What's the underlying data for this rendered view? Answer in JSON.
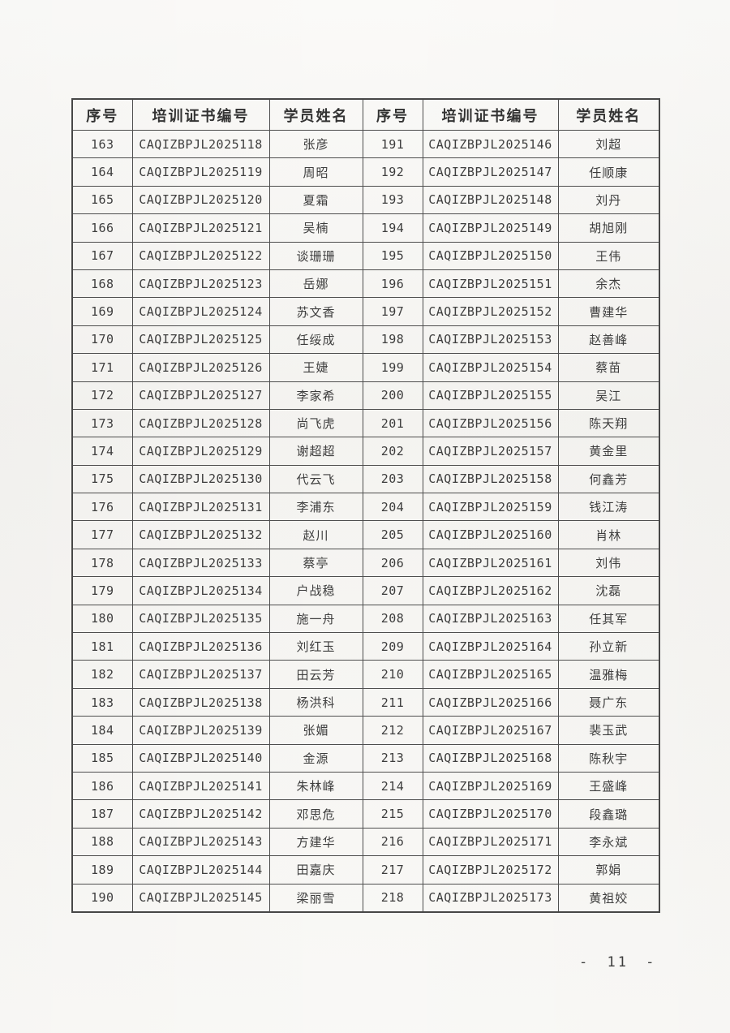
{
  "page": {
    "number_label": "- 11 -"
  },
  "table": {
    "headers": [
      "序号",
      "培训证书编号",
      "学员姓名",
      "序号",
      "培训证书编号",
      "学员姓名"
    ],
    "rows": [
      [
        "163",
        "CAQIZBPJL2025118",
        "张彦",
        "191",
        "CAQIZBPJL2025146",
        "刘超"
      ],
      [
        "164",
        "CAQIZBPJL2025119",
        "周昭",
        "192",
        "CAQIZBPJL2025147",
        "任顺康"
      ],
      [
        "165",
        "CAQIZBPJL2025120",
        "夏霜",
        "193",
        "CAQIZBPJL2025148",
        "刘丹"
      ],
      [
        "166",
        "CAQIZBPJL2025121",
        "吴楠",
        "194",
        "CAQIZBPJL2025149",
        "胡旭刚"
      ],
      [
        "167",
        "CAQIZBPJL2025122",
        "谈珊珊",
        "195",
        "CAQIZBPJL2025150",
        "王伟"
      ],
      [
        "168",
        "CAQIZBPJL2025123",
        "岳娜",
        "196",
        "CAQIZBPJL2025151",
        "余杰"
      ],
      [
        "169",
        "CAQIZBPJL2025124",
        "苏文香",
        "197",
        "CAQIZBPJL2025152",
        "曹建华"
      ],
      [
        "170",
        "CAQIZBPJL2025125",
        "任绥成",
        "198",
        "CAQIZBPJL2025153",
        "赵善峰"
      ],
      [
        "171",
        "CAQIZBPJL2025126",
        "王婕",
        "199",
        "CAQIZBPJL2025154",
        "蔡苗"
      ],
      [
        "172",
        "CAQIZBPJL2025127",
        "李家希",
        "200",
        "CAQIZBPJL2025155",
        "吴江"
      ],
      [
        "173",
        "CAQIZBPJL2025128",
        "尚飞虎",
        "201",
        "CAQIZBPJL2025156",
        "陈天翔"
      ],
      [
        "174",
        "CAQIZBPJL2025129",
        "谢超超",
        "202",
        "CAQIZBPJL2025157",
        "黄金里"
      ],
      [
        "175",
        "CAQIZBPJL2025130",
        "代云飞",
        "203",
        "CAQIZBPJL2025158",
        "何鑫芳"
      ],
      [
        "176",
        "CAQIZBPJL2025131",
        "李浦东",
        "204",
        "CAQIZBPJL2025159",
        "钱江涛"
      ],
      [
        "177",
        "CAQIZBPJL2025132",
        "赵川",
        "205",
        "CAQIZBPJL2025160",
        "肖林"
      ],
      [
        "178",
        "CAQIZBPJL2025133",
        "蔡亭",
        "206",
        "CAQIZBPJL2025161",
        "刘伟"
      ],
      [
        "179",
        "CAQIZBPJL2025134",
        "户战稳",
        "207",
        "CAQIZBPJL2025162",
        "沈磊"
      ],
      [
        "180",
        "CAQIZBPJL2025135",
        "施一舟",
        "208",
        "CAQIZBPJL2025163",
        "任其军"
      ],
      [
        "181",
        "CAQIZBPJL2025136",
        "刘红玉",
        "209",
        "CAQIZBPJL2025164",
        "孙立新"
      ],
      [
        "182",
        "CAQIZBPJL2025137",
        "田云芳",
        "210",
        "CAQIZBPJL2025165",
        "温雅梅"
      ],
      [
        "183",
        "CAQIZBPJL2025138",
        "杨洪科",
        "211",
        "CAQIZBPJL2025166",
        "聂广东"
      ],
      [
        "184",
        "CAQIZBPJL2025139",
        "张媚",
        "212",
        "CAQIZBPJL2025167",
        "裴玉武"
      ],
      [
        "185",
        "CAQIZBPJL2025140",
        "金源",
        "213",
        "CAQIZBPJL2025168",
        "陈秋宇"
      ],
      [
        "186",
        "CAQIZBPJL2025141",
        "朱林峰",
        "214",
        "CAQIZBPJL2025169",
        "王盛峰"
      ],
      [
        "187",
        "CAQIZBPJL2025142",
        "邓思危",
        "215",
        "CAQIZBPJL2025170",
        "段鑫璐"
      ],
      [
        "188",
        "CAQIZBPJL2025143",
        "方建华",
        "216",
        "CAQIZBPJL2025171",
        "李永斌"
      ],
      [
        "189",
        "CAQIZBPJL2025144",
        "田嘉庆",
        "217",
        "CAQIZBPJL2025172",
        "郭娟"
      ],
      [
        "190",
        "CAQIZBPJL2025145",
        "梁丽雪",
        "218",
        "CAQIZBPJL2025173",
        "黄祖姣"
      ]
    ]
  }
}
